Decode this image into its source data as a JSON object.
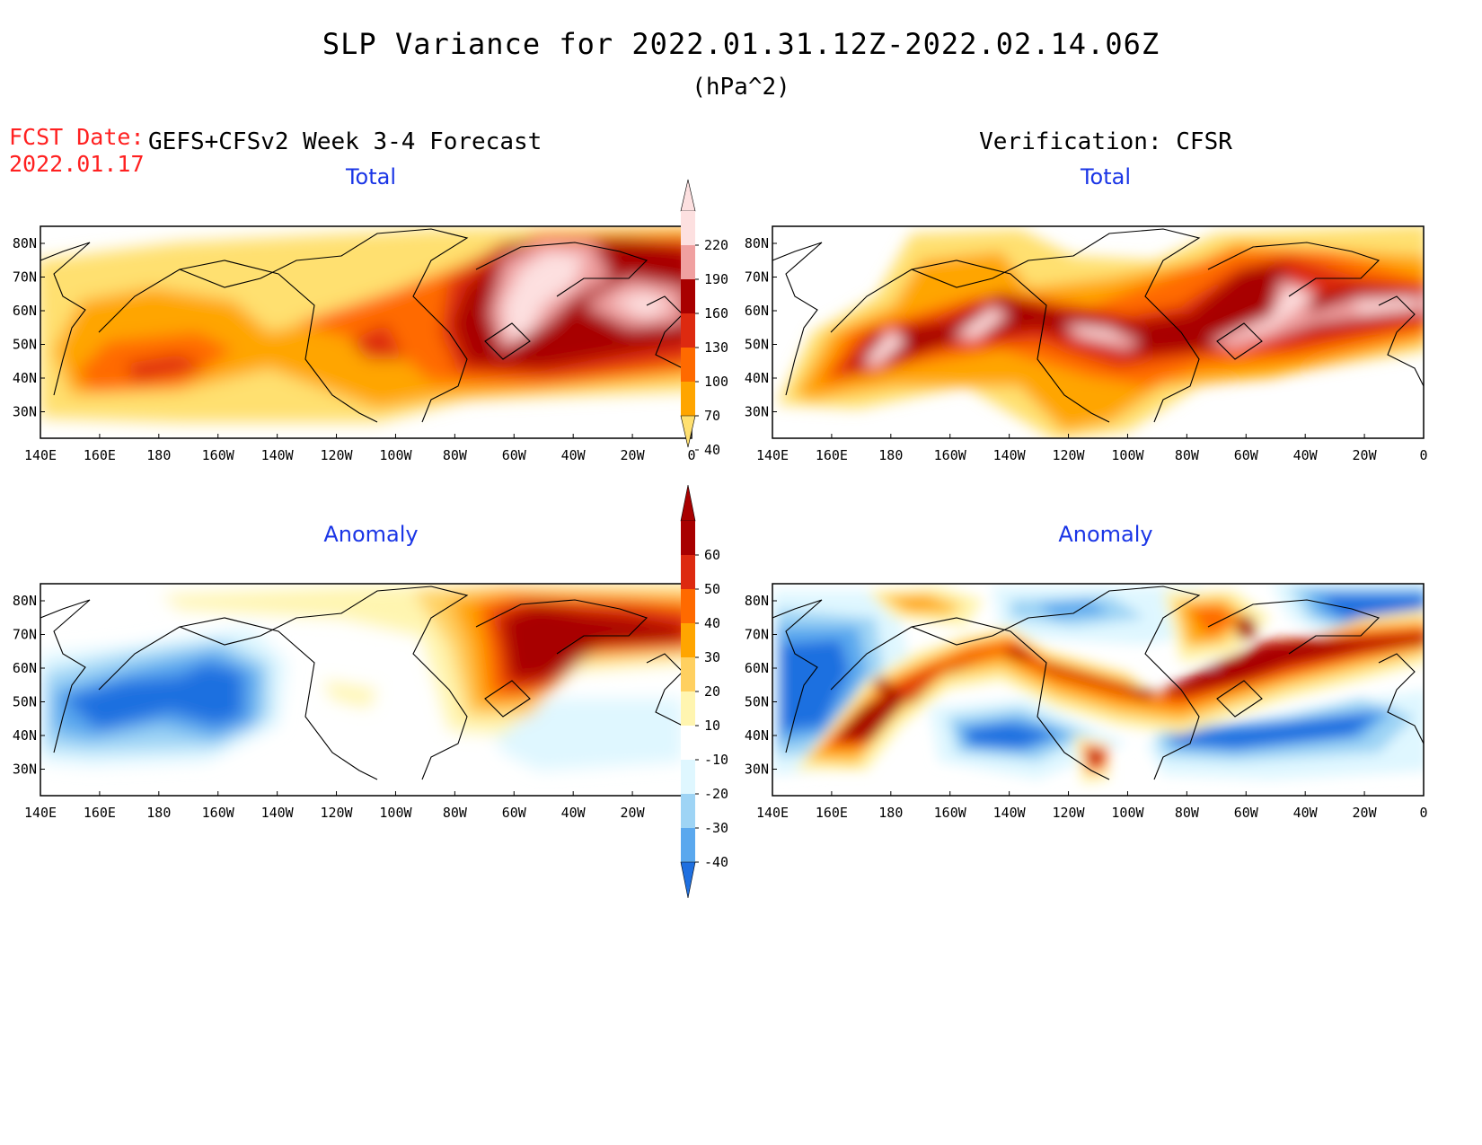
{
  "header": {
    "title": "SLP Variance for 2022.01.31.12Z-2022.02.14.06Z",
    "units": "(hPa^2)",
    "fcst_label": "FCST Date:",
    "fcst_date": "2022.01.17",
    "left_header": "GEFS+CFSv2 Week 3-4 Forecast",
    "right_header": "Verification: CFSR"
  },
  "panels": [
    {
      "id": "forecast-total",
      "title": "Total",
      "kind": "total"
    },
    {
      "id": "verification-total",
      "title": "Total",
      "kind": "total"
    },
    {
      "id": "forecast-anomaly",
      "title": "Anomaly",
      "kind": "anomaly"
    },
    {
      "id": "verification-anomaly",
      "title": "Anomaly",
      "kind": "anomaly"
    }
  ],
  "axes": {
    "lon_labels": [
      "140E",
      "160E",
      "180",
      "160W",
      "140W",
      "120W",
      "100W",
      "80W",
      "60W",
      "40W",
      "20W",
      "0"
    ],
    "lat_labels": [
      "80N",
      "70N",
      "60N",
      "50N",
      "40N",
      "30N"
    ]
  },
  "colorbars": {
    "total": {
      "labels": [
        "220",
        "190",
        "160",
        "130",
        "100",
        "70",
        "40"
      ],
      "colors": [
        "#fde0e0",
        "#f0a0a0",
        "#a80000",
        "#dd2a10",
        "#ff6a00",
        "#ffa500",
        "#ffe070"
      ]
    },
    "anomaly": {
      "labels": [
        "60",
        "50",
        "40",
        "30",
        "20",
        "10",
        "-10",
        "-20",
        "-30",
        "-40"
      ],
      "colors": [
        "#a80000",
        "#dd2a10",
        "#ff6a00",
        "#ffa500",
        "#ffd060",
        "#fff5b0",
        "#ffffff",
        "#dff7ff",
        "#9ed4f5",
        "#5aa8ee",
        "#1e6fe0"
      ]
    }
  },
  "colors": {
    "fcst_text": "#ff2020",
    "panel_title": "#1a35e6"
  }
}
